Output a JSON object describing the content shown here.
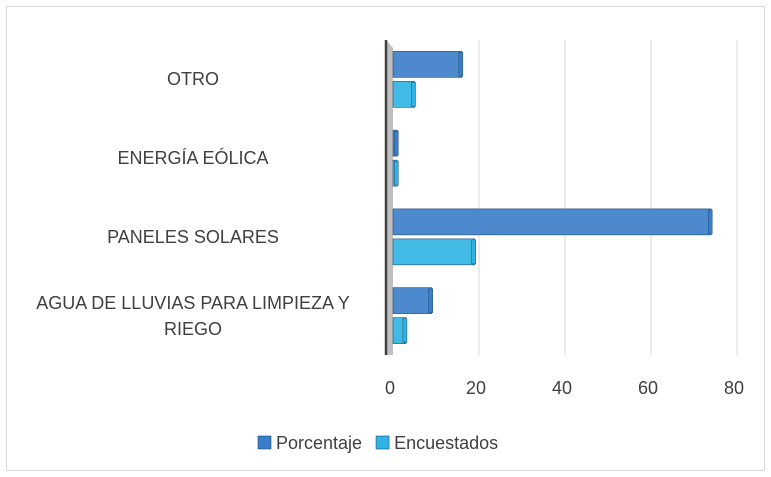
{
  "chart_data": {
    "type": "bar",
    "orientation": "horizontal",
    "categories": [
      "AGUA DE LLUVIAS PARA LIMPIEZA Y RIEGO",
      "PANELES SOLARES",
      "ENERGÍA EÓLICA",
      "OTRO"
    ],
    "series": [
      {
        "name": "Porcentaje",
        "color": "#3a7dc8",
        "values": [
          9,
          74,
          1,
          16
        ]
      },
      {
        "name": "Encuestados",
        "color": "#2eb3e3",
        "values": [
          3,
          19,
          1,
          5
        ]
      }
    ],
    "xlim": [
      0,
      80
    ],
    "xticks": [
      0,
      20,
      40,
      60,
      80
    ],
    "grid": true,
    "legend": "bottom"
  }
}
